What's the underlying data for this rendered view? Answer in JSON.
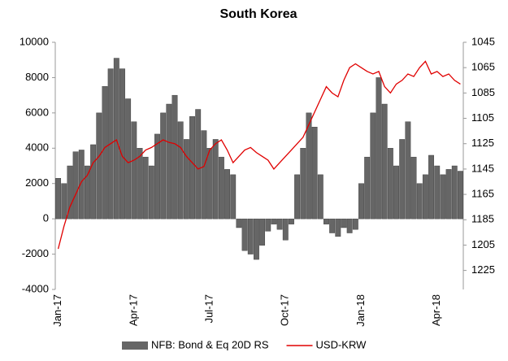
{
  "chart_data": {
    "type": "bar-line",
    "title": "South Korea",
    "categories": [
      "Jan-17",
      null,
      null,
      null,
      null,
      null,
      null,
      null,
      null,
      null,
      null,
      null,
      null,
      "Apr-17",
      null,
      null,
      null,
      null,
      null,
      null,
      null,
      null,
      null,
      null,
      null,
      null,
      "Jul-17",
      null,
      null,
      null,
      null,
      null,
      null,
      null,
      null,
      null,
      null,
      null,
      null,
      "Oct-17",
      null,
      null,
      null,
      null,
      null,
      null,
      null,
      null,
      null,
      null,
      null,
      null,
      "Jan-18",
      null,
      null,
      null,
      null,
      null,
      null,
      null,
      null,
      null,
      null,
      null,
      null,
      "Apr-18",
      null,
      null,
      null,
      null
    ],
    "series": [
      {
        "name": "NFB: Bond & Eq 20D RS",
        "color": "#666666",
        "kind": "bar",
        "values": [
          2300,
          2000,
          3000,
          3800,
          3900,
          3000,
          4200,
          6000,
          7500,
          8500,
          9100,
          8500,
          6800,
          5500,
          4000,
          3500,
          3000,
          4800,
          6000,
          6500,
          7000,
          5500,
          4500,
          5800,
          6200,
          5000,
          4000,
          4500,
          3500,
          2800,
          2500,
          -500,
          -1800,
          -2000,
          -2300,
          -1500,
          -700,
          -300,
          -600,
          -1200,
          -300,
          2500,
          4000,
          6000,
          5200,
          2500,
          -300,
          -800,
          -1000,
          -500,
          -800,
          -600,
          2000,
          3500,
          6000,
          8000,
          6500,
          4000,
          3000,
          4500,
          5500,
          3500,
          2000,
          2500,
          3600,
          3000,
          2500,
          2800,
          3000,
          2700
        ]
      },
      {
        "name": "USD-KRW",
        "color": "#e00000",
        "kind": "line",
        "axis": "y2",
        "values": [
          1208,
          1190,
          1175,
          1165,
          1155,
          1150,
          1140,
          1135,
          1128,
          1125,
          1122,
          1135,
          1140,
          1138,
          1135,
          1130,
          1128,
          1125,
          1122,
          1124,
          1125,
          1128,
          1135,
          1140,
          1145,
          1143,
          1130,
          1125,
          1122,
          1130,
          1140,
          1135,
          1130,
          1128,
          1132,
          1135,
          1138,
          1145,
          1140,
          1135,
          1130,
          1125,
          1120,
          1110,
          1100,
          1090,
          1080,
          1085,
          1088,
          1075,
          1065,
          1062,
          1065,
          1068,
          1070,
          1068,
          1080,
          1085,
          1078,
          1075,
          1070,
          1072,
          1065,
          1060,
          1070,
          1068,
          1072,
          1070,
          1075,
          1078
        ]
      }
    ],
    "ylim": [
      -4000,
      10000
    ],
    "yticks": [
      -4000,
      -2000,
      0,
      2000,
      4000,
      6000,
      8000,
      10000
    ],
    "y2lim": [
      1240,
      1045
    ],
    "y2ticks": [
      1045,
      1065,
      1085,
      1105,
      1125,
      1145,
      1165,
      1185,
      1205,
      1225
    ],
    "legend": "bottom"
  }
}
